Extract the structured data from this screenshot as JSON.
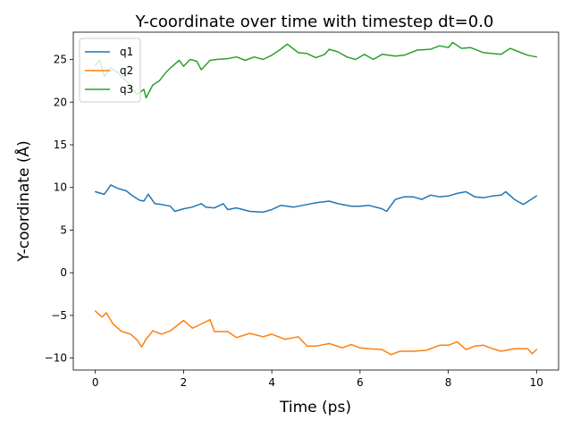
{
  "chart_data": {
    "type": "line",
    "title": "Y-coordinate over time with timestep dt=0.0",
    "xlabel": "Time (ps)",
    "ylabel": "Y-coordinate (Å)",
    "xlim": [
      -0.5,
      10.5
    ],
    "ylim": [
      -11.4,
      28.2
    ],
    "xticks": [
      0,
      2,
      4,
      6,
      8,
      10
    ],
    "yticks": [
      -10,
      -5,
      0,
      5,
      10,
      15,
      20,
      25
    ],
    "grid": false,
    "legend_position": "top-left",
    "series": [
      {
        "name": "q1",
        "color": "#1f77b4",
        "points": [
          [
            0,
            9.5
          ],
          [
            0.2,
            9.2
          ],
          [
            0.35,
            10.3
          ],
          [
            0.5,
            9.9
          ],
          [
            0.7,
            9.6
          ],
          [
            0.85,
            9.0
          ],
          [
            1.0,
            8.5
          ],
          [
            1.1,
            8.4
          ],
          [
            1.2,
            9.2
          ],
          [
            1.35,
            8.1
          ],
          [
            1.5,
            8.0
          ],
          [
            1.7,
            7.8
          ],
          [
            1.8,
            7.2
          ],
          [
            2.0,
            7.5
          ],
          [
            2.2,
            7.7
          ],
          [
            2.4,
            8.1
          ],
          [
            2.5,
            7.7
          ],
          [
            2.7,
            7.6
          ],
          [
            2.9,
            8.1
          ],
          [
            3.0,
            7.4
          ],
          [
            3.2,
            7.6
          ],
          [
            3.5,
            7.2
          ],
          [
            3.8,
            7.1
          ],
          [
            4.0,
            7.4
          ],
          [
            4.2,
            7.9
          ],
          [
            4.5,
            7.7
          ],
          [
            4.8,
            8.0
          ],
          [
            5.0,
            8.2
          ],
          [
            5.3,
            8.4
          ],
          [
            5.5,
            8.1
          ],
          [
            5.8,
            7.8
          ],
          [
            6.0,
            7.8
          ],
          [
            6.2,
            7.9
          ],
          [
            6.5,
            7.5
          ],
          [
            6.6,
            7.2
          ],
          [
            6.8,
            8.6
          ],
          [
            7.0,
            8.9
          ],
          [
            7.2,
            8.9
          ],
          [
            7.4,
            8.6
          ],
          [
            7.6,
            9.1
          ],
          [
            7.8,
            8.9
          ],
          [
            8.0,
            9.0
          ],
          [
            8.2,
            9.3
          ],
          [
            8.4,
            9.5
          ],
          [
            8.6,
            8.9
          ],
          [
            8.8,
            8.8
          ],
          [
            9.0,
            9.0
          ],
          [
            9.2,
            9.1
          ],
          [
            9.3,
            9.5
          ],
          [
            9.5,
            8.6
          ],
          [
            9.7,
            8.0
          ],
          [
            9.85,
            8.5
          ],
          [
            10.0,
            9.0
          ]
        ]
      },
      {
        "name": "q2",
        "color": "#ff7f0e",
        "points": [
          [
            0,
            -4.5
          ],
          [
            0.15,
            -5.2
          ],
          [
            0.25,
            -4.7
          ],
          [
            0.4,
            -6.0
          ],
          [
            0.6,
            -6.9
          ],
          [
            0.8,
            -7.2
          ],
          [
            0.95,
            -7.9
          ],
          [
            1.05,
            -8.7
          ],
          [
            1.15,
            -7.8
          ],
          [
            1.3,
            -6.8
          ],
          [
            1.5,
            -7.2
          ],
          [
            1.7,
            -6.8
          ],
          [
            1.85,
            -6.2
          ],
          [
            2.0,
            -5.6
          ],
          [
            2.2,
            -6.5
          ],
          [
            2.4,
            -6.0
          ],
          [
            2.6,
            -5.5
          ],
          [
            2.7,
            -6.9
          ],
          [
            3.0,
            -6.9
          ],
          [
            3.2,
            -7.6
          ],
          [
            3.5,
            -7.1
          ],
          [
            3.8,
            -7.5
          ],
          [
            4.0,
            -7.2
          ],
          [
            4.3,
            -7.8
          ],
          [
            4.6,
            -7.5
          ],
          [
            4.8,
            -8.6
          ],
          [
            5.0,
            -8.6
          ],
          [
            5.3,
            -8.3
          ],
          [
            5.6,
            -8.8
          ],
          [
            5.8,
            -8.4
          ],
          [
            6.0,
            -8.8
          ],
          [
            6.2,
            -8.9
          ],
          [
            6.5,
            -9.0
          ],
          [
            6.7,
            -9.6
          ],
          [
            6.9,
            -9.2
          ],
          [
            7.2,
            -9.2
          ],
          [
            7.5,
            -9.1
          ],
          [
            7.8,
            -8.5
          ],
          [
            8.0,
            -8.5
          ],
          [
            8.2,
            -8.1
          ],
          [
            8.4,
            -9.0
          ],
          [
            8.6,
            -8.6
          ],
          [
            8.8,
            -8.5
          ],
          [
            9.0,
            -8.9
          ],
          [
            9.2,
            -9.2
          ],
          [
            9.5,
            -8.9
          ],
          [
            9.8,
            -8.9
          ],
          [
            9.9,
            -9.5
          ],
          [
            10.0,
            -9.0
          ]
        ]
      },
      {
        "name": "q3",
        "color": "#2ca02c",
        "points": [
          [
            0,
            24.3
          ],
          [
            0.1,
            24.9
          ],
          [
            0.2,
            23.0
          ],
          [
            0.35,
            24.0
          ],
          [
            0.5,
            23.5
          ],
          [
            0.7,
            22.5
          ],
          [
            0.85,
            21.5
          ],
          [
            0.95,
            20.9
          ],
          [
            1.1,
            21.5
          ],
          [
            1.15,
            20.5
          ],
          [
            1.3,
            22.0
          ],
          [
            1.45,
            22.5
          ],
          [
            1.6,
            23.5
          ],
          [
            1.7,
            24.0
          ],
          [
            1.9,
            24.9
          ],
          [
            2.0,
            24.2
          ],
          [
            2.15,
            25.0
          ],
          [
            2.3,
            24.8
          ],
          [
            2.4,
            23.8
          ],
          [
            2.6,
            24.9
          ],
          [
            2.75,
            25.0
          ],
          [
            3.0,
            25.1
          ],
          [
            3.2,
            25.3
          ],
          [
            3.4,
            24.9
          ],
          [
            3.6,
            25.3
          ],
          [
            3.8,
            25.0
          ],
          [
            4.0,
            25.5
          ],
          [
            4.2,
            26.2
          ],
          [
            4.35,
            26.8
          ],
          [
            4.6,
            25.8
          ],
          [
            4.8,
            25.7
          ],
          [
            5.0,
            25.2
          ],
          [
            5.2,
            25.6
          ],
          [
            5.3,
            26.2
          ],
          [
            5.5,
            25.9
          ],
          [
            5.7,
            25.3
          ],
          [
            5.9,
            25.0
          ],
          [
            6.1,
            25.6
          ],
          [
            6.3,
            25.0
          ],
          [
            6.5,
            25.6
          ],
          [
            6.8,
            25.4
          ],
          [
            7.0,
            25.5
          ],
          [
            7.3,
            26.1
          ],
          [
            7.6,
            26.2
          ],
          [
            7.8,
            26.6
          ],
          [
            8.0,
            26.4
          ],
          [
            8.1,
            27.0
          ],
          [
            8.3,
            26.3
          ],
          [
            8.5,
            26.4
          ],
          [
            8.8,
            25.8
          ],
          [
            9.0,
            25.7
          ],
          [
            9.2,
            25.6
          ],
          [
            9.4,
            26.3
          ],
          [
            9.6,
            25.9
          ],
          [
            9.8,
            25.5
          ],
          [
            10.0,
            25.3
          ]
        ]
      }
    ]
  }
}
